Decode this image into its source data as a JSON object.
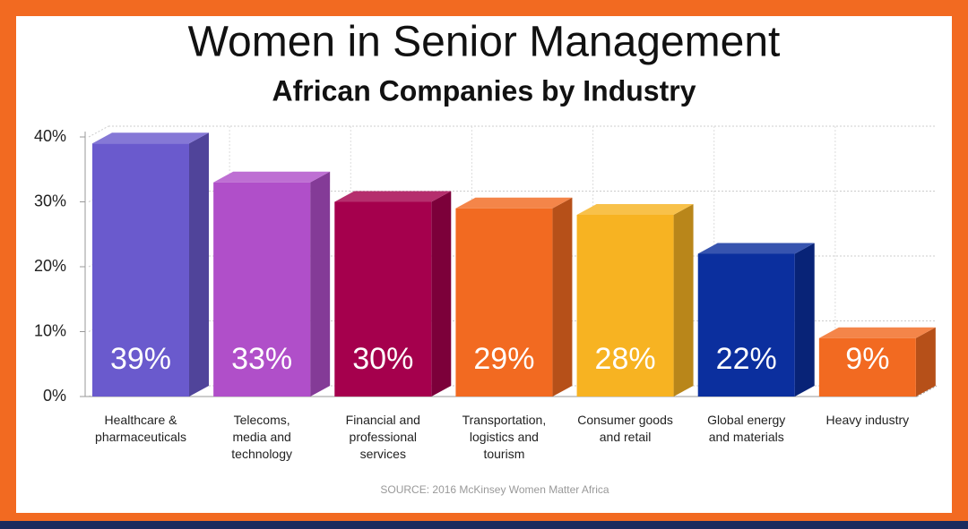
{
  "chart_data": {
    "type": "bar3d",
    "title": "Women in Senior Management",
    "subtitle": "African Companies by Industry",
    "source": "SOURCE: 2016 McKinsey Women Matter Africa",
    "categories": [
      "Healthcare &\npharmaceuticals",
      "Telecoms,\nmedia and\ntechnology",
      "Financial and\nprofessional\nservices",
      "Transportation,\nlogistics and\ntourism",
      "Consumer goods\nand retail",
      "Global energy\nand materials",
      "Heavy industry"
    ],
    "values": [
      39,
      33,
      30,
      29,
      28,
      22,
      9
    ],
    "value_labels": [
      "39%",
      "33%",
      "30%",
      "29%",
      "28%",
      "22%",
      "9%"
    ],
    "colors": [
      "#6a5acd",
      "#b04fc9",
      "#a5004d",
      "#f26a21",
      "#f7b322",
      "#0b2f9e",
      "#f26a21"
    ],
    "ylim": [
      0,
      40
    ],
    "yticks": [
      {
        "value": 0,
        "label": "0%"
      },
      {
        "value": 10,
        "label": "10%"
      },
      {
        "value": 20,
        "label": "20%"
      },
      {
        "value": 30,
        "label": "30%"
      },
      {
        "value": 40,
        "label": "40%"
      }
    ],
    "grid": true
  }
}
